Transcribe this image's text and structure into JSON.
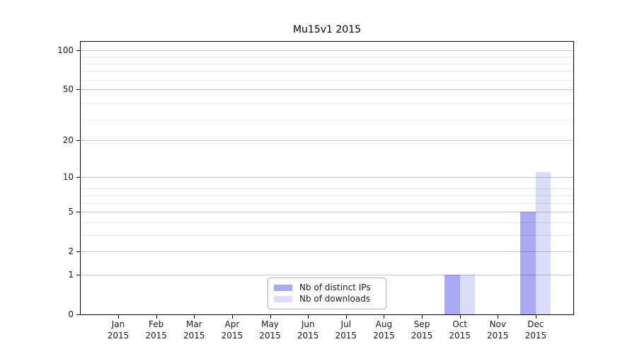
{
  "chart_data": {
    "type": "bar",
    "title": "Mu15v1 2015",
    "xlabel": "",
    "ylabel": "",
    "categories": [
      {
        "month": "Jan",
        "year": "2015"
      },
      {
        "month": "Feb",
        "year": "2015"
      },
      {
        "month": "Mar",
        "year": "2015"
      },
      {
        "month": "Apr",
        "year": "2015"
      },
      {
        "month": "May",
        "year": "2015"
      },
      {
        "month": "Jun",
        "year": "2015"
      },
      {
        "month": "Jul",
        "year": "2015"
      },
      {
        "month": "Aug",
        "year": "2015"
      },
      {
        "month": "Sep",
        "year": "2015"
      },
      {
        "month": "Oct",
        "year": "2015"
      },
      {
        "month": "Nov",
        "year": "2015"
      },
      {
        "month": "Dec",
        "year": "2015"
      }
    ],
    "series": [
      {
        "name": "Nb of distinct IPs",
        "color": "rgba(30,30,225,0.38)",
        "values": [
          0,
          0,
          0,
          0,
          0,
          0,
          0,
          0,
          0,
          1,
          0,
          5
        ]
      },
      {
        "name": "Nb of downloads",
        "color": "rgba(30,30,225,0.16)",
        "values": [
          0,
          0,
          0,
          0,
          0,
          0,
          0,
          0,
          0,
          1,
          0,
          11
        ]
      }
    ],
    "y_ticks": [
      0,
      1,
      2,
      5,
      10,
      20,
      50,
      100
    ],
    "y_scale": "log(1+x)",
    "ylim": [
      0,
      115
    ],
    "grid": {
      "major_color": "#c9c9c9",
      "minor_color": "#e9e9e9",
      "minor_on": true
    },
    "legend": {
      "position": "lower center",
      "border_color": "#b0b0b0"
    },
    "axis_color": "#000000",
    "background_color": "#ffffff"
  }
}
